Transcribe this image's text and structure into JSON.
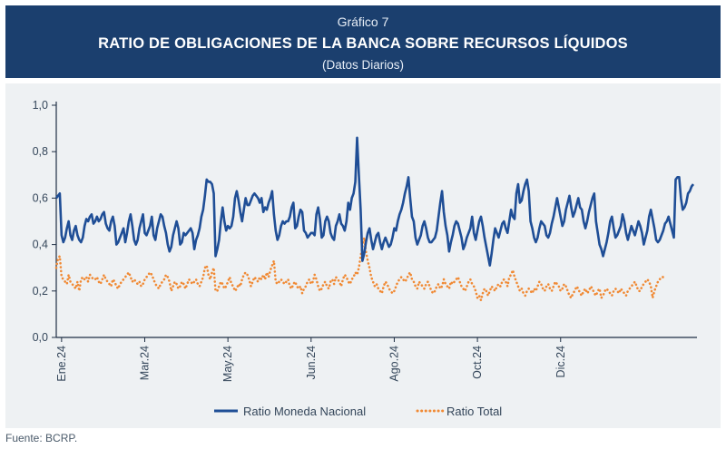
{
  "header": {
    "kicker": "Gráfico 7",
    "title": "RATIO DE OBLIGACIONES DE LA BANCA SOBRE RECURSOS LÍQUIDOS",
    "subtitle": "(Datos Diarios)"
  },
  "source": "Fuente: BCRP.",
  "colors": {
    "header_bg": "#1b3f6e",
    "series_mn": "#1f4e96",
    "series_total": "#f08a35",
    "panel_bg": "#eef1f3"
  },
  "chart_data": {
    "type": "line",
    "ylim": [
      0,
      1.0
    ],
    "yticks": [
      "0,0",
      "0,2",
      "0,4",
      "0,6",
      "0,8",
      "1,0"
    ],
    "ytick_values": [
      0,
      0.2,
      0.4,
      0.6,
      0.8,
      1.0
    ],
    "xtick_labels": [
      "Ene.24",
      "Mar.24",
      "May.24",
      "Jun.24",
      "Ago.24",
      "Oct.24",
      "Dic.24"
    ],
    "xtick_index": [
      3,
      50,
      97,
      144,
      191,
      238,
      285
    ],
    "grid": false,
    "legend_position": "bottom-center",
    "series": [
      {
        "name": "Ratio Moneda Nacional",
        "style": "solid",
        "values": [
          0.6,
          0.61,
          0.62,
          0.44,
          0.41,
          0.43,
          0.47,
          0.5,
          0.44,
          0.42,
          0.46,
          0.48,
          0.44,
          0.42,
          0.41,
          0.43,
          0.48,
          0.51,
          0.5,
          0.52,
          0.53,
          0.49,
          0.5,
          0.52,
          0.5,
          0.51,
          0.53,
          0.54,
          0.49,
          0.47,
          0.46,
          0.5,
          0.52,
          0.48,
          0.4,
          0.41,
          0.43,
          0.45,
          0.47,
          0.41,
          0.45,
          0.5,
          0.53,
          0.48,
          0.42,
          0.4,
          0.42,
          0.47,
          0.5,
          0.53,
          0.45,
          0.44,
          0.46,
          0.48,
          0.52,
          0.44,
          0.42,
          0.47,
          0.5,
          0.53,
          0.52,
          0.48,
          0.45,
          0.4,
          0.37,
          0.39,
          0.44,
          0.47,
          0.5,
          0.47,
          0.4,
          0.41,
          0.45,
          0.44,
          0.45,
          0.46,
          0.47,
          0.45,
          0.38,
          0.42,
          0.44,
          0.47,
          0.52,
          0.55,
          0.61,
          0.68,
          0.67,
          0.67,
          0.66,
          0.62,
          0.35,
          0.38,
          0.42,
          0.5,
          0.56,
          0.5,
          0.46,
          0.48,
          0.47,
          0.48,
          0.52,
          0.6,
          0.63,
          0.59,
          0.54,
          0.5,
          0.55,
          0.6,
          0.57,
          0.57,
          0.59,
          0.61,
          0.62,
          0.61,
          0.6,
          0.58,
          0.6,
          0.54,
          0.56,
          0.55,
          0.58,
          0.6,
          0.63,
          0.53,
          0.46,
          0.42,
          0.44,
          0.48,
          0.5,
          0.49,
          0.5,
          0.5,
          0.52,
          0.56,
          0.58,
          0.47,
          0.48,
          0.52,
          0.55,
          0.54,
          0.46,
          0.45,
          0.43,
          0.44,
          0.45,
          0.45,
          0.44,
          0.53,
          0.56,
          0.51,
          0.43,
          0.44,
          0.5,
          0.52,
          0.5,
          0.45,
          0.43,
          0.42,
          0.48,
          0.5,
          0.53,
          0.49,
          0.48,
          0.46,
          0.5,
          0.58,
          0.55,
          0.6,
          0.62,
          0.67,
          0.86,
          0.7,
          0.55,
          0.33,
          0.36,
          0.41,
          0.45,
          0.47,
          0.42,
          0.38,
          0.41,
          0.44,
          0.45,
          0.41,
          0.38,
          0.41,
          0.43,
          0.41,
          0.39,
          0.4,
          0.43,
          0.47,
          0.46,
          0.5,
          0.53,
          0.55,
          0.58,
          0.62,
          0.65,
          0.69,
          0.6,
          0.52,
          0.5,
          0.43,
          0.4,
          0.42,
          0.44,
          0.48,
          0.5,
          0.47,
          0.43,
          0.41,
          0.41,
          0.42,
          0.43,
          0.46,
          0.52,
          0.58,
          0.63,
          0.54,
          0.48,
          0.44,
          0.37,
          0.41,
          0.44,
          0.48,
          0.5,
          0.49,
          0.46,
          0.43,
          0.38,
          0.4,
          0.43,
          0.45,
          0.47,
          0.52,
          0.45,
          0.42,
          0.46,
          0.5,
          0.52,
          0.48,
          0.43,
          0.39,
          0.35,
          0.31,
          0.36,
          0.42,
          0.47,
          0.45,
          0.43,
          0.46,
          0.49,
          0.5,
          0.47,
          0.45,
          0.5,
          0.55,
          0.52,
          0.51,
          0.62,
          0.66,
          0.58,
          0.59,
          0.63,
          0.66,
          0.68,
          0.63,
          0.5,
          0.47,
          0.43,
          0.41,
          0.43,
          0.47,
          0.5,
          0.49,
          0.48,
          0.44,
          0.43,
          0.45,
          0.49,
          0.52,
          0.56,
          0.6,
          0.56,
          0.52,
          0.48,
          0.5,
          0.55,
          0.58,
          0.61,
          0.56,
          0.52,
          0.54,
          0.57,
          0.6,
          0.56,
          0.55,
          0.5,
          0.47,
          0.5,
          0.54,
          0.57,
          0.6,
          0.62,
          0.5,
          0.45,
          0.4,
          0.38,
          0.35,
          0.38,
          0.41,
          0.45,
          0.5,
          0.52,
          0.47,
          0.43,
          0.44,
          0.46,
          0.48,
          0.53,
          0.5,
          0.45,
          0.42,
          0.45,
          0.48,
          0.46,
          0.44,
          0.47,
          0.5,
          0.48,
          0.45,
          0.4,
          0.43,
          0.46,
          0.52,
          0.55,
          0.51,
          0.47,
          0.42,
          0.41,
          0.42,
          0.44,
          0.46,
          0.49,
          0.5,
          0.52,
          0.49,
          0.46,
          0.43,
          0.68,
          0.69,
          0.69,
          0.6,
          0.55,
          0.56,
          0.58,
          0.62,
          0.63,
          0.65,
          0.66
        ]
      },
      {
        "name": "Ratio Total",
        "style": "dotted",
        "values": [
          0.3,
          0.34,
          0.35,
          0.26,
          0.25,
          0.24,
          0.23,
          0.27,
          0.24,
          0.23,
          0.22,
          0.21,
          0.24,
          0.2,
          0.25,
          0.26,
          0.25,
          0.26,
          0.24,
          0.27,
          0.26,
          0.25,
          0.25,
          0.26,
          0.24,
          0.23,
          0.25,
          0.27,
          0.25,
          0.24,
          0.23,
          0.22,
          0.25,
          0.24,
          0.22,
          0.21,
          0.23,
          0.24,
          0.25,
          0.26,
          0.27,
          0.28,
          0.26,
          0.24,
          0.25,
          0.24,
          0.23,
          0.24,
          0.22,
          0.23,
          0.25,
          0.26,
          0.27,
          0.28,
          0.27,
          0.25,
          0.23,
          0.22,
          0.21,
          0.23,
          0.24,
          0.25,
          0.27,
          0.26,
          0.24,
          0.2,
          0.22,
          0.24,
          0.23,
          0.21,
          0.22,
          0.24,
          0.23,
          0.21,
          0.23,
          0.25,
          0.24,
          0.23,
          0.24,
          0.25,
          0.23,
          0.22,
          0.24,
          0.26,
          0.3,
          0.31,
          0.27,
          0.25,
          0.28,
          0.3,
          0.2,
          0.2,
          0.22,
          0.24,
          0.23,
          0.21,
          0.22,
          0.24,
          0.26,
          0.23,
          0.22,
          0.2,
          0.21,
          0.23,
          0.22,
          0.25,
          0.27,
          0.28,
          0.27,
          0.25,
          0.22,
          0.24,
          0.26,
          0.25,
          0.24,
          0.26,
          0.25,
          0.27,
          0.25,
          0.28,
          0.26,
          0.29,
          0.31,
          0.33,
          0.24,
          0.23,
          0.24,
          0.25,
          0.24,
          0.23,
          0.24,
          0.25,
          0.22,
          0.21,
          0.23,
          0.24,
          0.22,
          0.21,
          0.22,
          0.19,
          0.21,
          0.22,
          0.24,
          0.25,
          0.23,
          0.24,
          0.27,
          0.25,
          0.22,
          0.2,
          0.21,
          0.23,
          0.24,
          0.22,
          0.21,
          0.24,
          0.25,
          0.23,
          0.26,
          0.25,
          0.24,
          0.22,
          0.25,
          0.27,
          0.26,
          0.24,
          0.23,
          0.25,
          0.26,
          0.28,
          0.27,
          0.3,
          0.35,
          0.39,
          0.43,
          0.37,
          0.33,
          0.3,
          0.26,
          0.24,
          0.22,
          0.23,
          0.21,
          0.2,
          0.19,
          0.22,
          0.24,
          0.23,
          0.21,
          0.2,
          0.19,
          0.2,
          0.22,
          0.24,
          0.25,
          0.26,
          0.25,
          0.24,
          0.25,
          0.27,
          0.28,
          0.25,
          0.24,
          0.22,
          0.21,
          0.24,
          0.23,
          0.22,
          0.21,
          0.23,
          0.24,
          0.22,
          0.2,
          0.19,
          0.2,
          0.22,
          0.23,
          0.21,
          0.22,
          0.25,
          0.23,
          0.22,
          0.21,
          0.24,
          0.23,
          0.24,
          0.25,
          0.26,
          0.24,
          0.22,
          0.21,
          0.2,
          0.22,
          0.24,
          0.25,
          0.23,
          0.22,
          0.2,
          0.17,
          0.18,
          0.16,
          0.19,
          0.21,
          0.2,
          0.18,
          0.2,
          0.22,
          0.21,
          0.2,
          0.22,
          0.23,
          0.22,
          0.24,
          0.25,
          0.24,
          0.22,
          0.26,
          0.27,
          0.29,
          0.26,
          0.24,
          0.22,
          0.2,
          0.21,
          0.19,
          0.18,
          0.2,
          0.21,
          0.2,
          0.19,
          0.21,
          0.2,
          0.22,
          0.24,
          0.23,
          0.21,
          0.2,
          0.22,
          0.23,
          0.21,
          0.2,
          0.22,
          0.24,
          0.23,
          0.22,
          0.2,
          0.21,
          0.23,
          0.22,
          0.2,
          0.18,
          0.17,
          0.19,
          0.2,
          0.22,
          0.21,
          0.19,
          0.18,
          0.2,
          0.21,
          0.19,
          0.2,
          0.22,
          0.21,
          0.19,
          0.18,
          0.2,
          0.21,
          0.17,
          0.18,
          0.2,
          0.21,
          0.2,
          0.19,
          0.18,
          0.2,
          0.21,
          0.2,
          0.19,
          0.21,
          0.2,
          0.19,
          0.18,
          0.2,
          0.21,
          0.22,
          0.23,
          0.24,
          0.22,
          0.2,
          0.2,
          0.22,
          0.23,
          0.24,
          0.25,
          0.24,
          0.22,
          0.17,
          0.2,
          0.22,
          0.24,
          0.25,
          0.26,
          0.26
        ]
      }
    ]
  }
}
